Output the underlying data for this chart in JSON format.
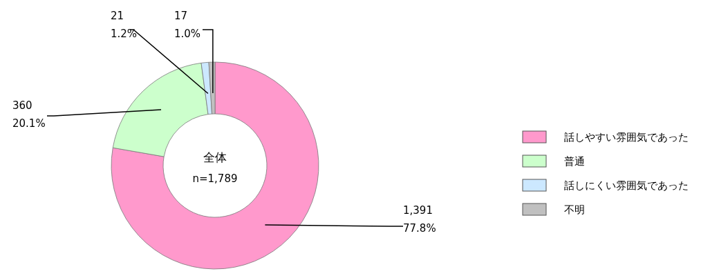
{
  "chart_data": {
    "type": "donut",
    "title": "全体",
    "subtitle": "n=1,789",
    "categories": [
      "話しやすい雰囲気であった",
      "普通",
      "話しにくい雰囲気であった",
      "不明"
    ],
    "values": [
      1391,
      360,
      21,
      17
    ],
    "colors": [
      "#ff99cc",
      "#ccffcc",
      "#cce8ff",
      "#c0c0c0"
    ],
    "value_labels": [
      "1,391\n77.8%",
      "360\n20.1%",
      "21\n1.2%",
      "17\n1.0%"
    ],
    "legend": "right"
  }
}
